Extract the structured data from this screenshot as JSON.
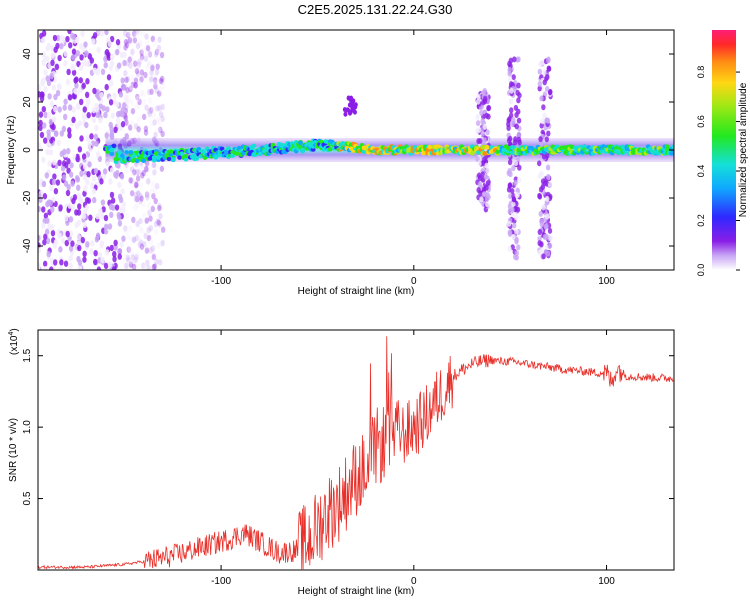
{
  "title": "C2E5.2025.131.22.24.G30",
  "chart_data": [
    {
      "type": "heatmap",
      "xlabel": "Height of straight line (km)",
      "ylabel": "Frequency (Hz)",
      "xlim": [
        -195,
        135
      ],
      "ylim": [
        -50,
        50
      ],
      "xticks": [
        -100,
        0,
        100
      ],
      "yticks": [
        -40,
        -20,
        0,
        20,
        40
      ],
      "colorbar": {
        "label": "Normalized spectral amplitude",
        "range": [
          0,
          0.97
        ],
        "ticks": [
          0.0,
          0.2,
          0.4,
          0.6,
          0.8
        ]
      },
      "ridge": {
        "description_points_x": [
          -155,
          -120,
          -80,
          -50,
          -35,
          -20,
          0,
          50,
          100,
          135
        ],
        "description_points_y": [
          -3,
          -2,
          0,
          2,
          1.5,
          0,
          0,
          0,
          0,
          0
        ]
      },
      "bursts": [
        {
          "x": 36,
          "ylim": [
            -25,
            25
          ]
        },
        {
          "x": 52,
          "ylim": [
            -45,
            38
          ]
        },
        {
          "x": 68,
          "ylim": [
            -45,
            38
          ]
        }
      ]
    },
    {
      "type": "line",
      "xlabel": "Height of straight line (km)",
      "ylabel": "SNR (10 * v/v)",
      "multiplier": "(x10",
      "multiplier_exp": "4",
      "multiplier_close": ")",
      "xlim": [
        -195,
        135
      ],
      "ylim": [
        0,
        1.68
      ],
      "xticks": [
        -100,
        0,
        100
      ],
      "yticks": [
        0.5,
        1.0,
        1.5
      ],
      "ytick_labels": [
        "0.5",
        "1.0",
        "1.5"
      ],
      "series": [
        {
          "color": "#e8302a",
          "x": [
            -195,
            -170,
            -150,
            -135,
            -125,
            -115,
            -105,
            -95,
            -88,
            -80,
            -70,
            -60,
            -52,
            -45,
            -40,
            -35,
            -30,
            -25,
            -20,
            -15,
            -10,
            -5,
            0,
            5,
            10,
            15,
            20,
            25,
            30,
            35,
            40,
            45,
            50,
            60,
            70,
            80,
            90,
            95,
            100,
            103,
            105,
            110,
            120,
            135
          ],
          "y": [
            0.02,
            0.02,
            0.04,
            0.07,
            0.1,
            0.14,
            0.18,
            0.22,
            0.26,
            0.2,
            0.12,
            0.14,
            0.25,
            0.4,
            0.45,
            0.55,
            0.65,
            0.7,
            0.85,
            0.9,
            1.0,
            0.95,
            1.0,
            1.05,
            1.15,
            1.25,
            1.35,
            1.4,
            1.44,
            1.46,
            1.47,
            1.46,
            1.46,
            1.44,
            1.42,
            1.4,
            1.39,
            1.38,
            1.38,
            1.3,
            1.42,
            1.36,
            1.35,
            1.34
          ]
        }
      ]
    }
  ]
}
